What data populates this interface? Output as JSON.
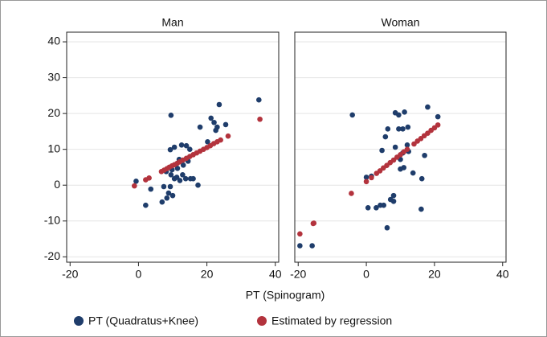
{
  "chart_data": {
    "type": "scatter",
    "x_label": "PT (Spinogram)",
    "xlim": [
      -21,
      41
    ],
    "ylim": [
      -21.5,
      42.7
    ],
    "xticks": [
      -20,
      0,
      20,
      40
    ],
    "yticks": [
      -20,
      -10,
      0,
      10,
      20,
      30,
      40
    ],
    "grid": true,
    "series": [
      {
        "name": "PT (Quadratus+Knee)",
        "color": "#1f3d6b"
      },
      {
        "name": "Estimated by regression",
        "color": "#b3333d"
      }
    ],
    "panels": [
      {
        "title": "Man",
        "series": [
          {
            "x": [
              -0.7,
              2.1,
              3.6,
              9.5,
              9.3,
              10.5,
              12.6,
              14,
              15,
              18,
              21.2,
              22.1,
              22.6,
              23.6,
              25.5,
              23,
              35.2,
              20.2,
              6.9,
              8.3,
              8.8,
              9.3,
              10,
              10.5,
              11.2,
              12.1,
              12.9,
              13.8,
              15.2,
              16,
              17.4,
              14.5,
              13.1,
              11.4,
              9.8,
              8.1,
              11.9,
              7.4,
              9.5
            ],
            "values": [
              1.1,
              -5.6,
              -1.1,
              19.5,
              9.9,
              10.6,
              11.2,
              11,
              10,
              16.2,
              18.7,
              17.5,
              15.3,
              22.5,
              16.9,
              16.2,
              23.8,
              12.1,
              -4.7,
              -3.6,
              -2.2,
              -0.4,
              -2.9,
              1.8,
              2.2,
              1.3,
              2.9,
              1.8,
              1.8,
              1.8,
              0,
              6.7,
              5.6,
              4.7,
              4.3,
              3.8,
              7.2,
              -0.4,
              2.9
            ]
          },
          {
            "x": [
              -1.2,
              2.1,
              3.1,
              6.7,
              7.5,
              8.3,
              9,
              9.8,
              10.5,
              11.3,
              12,
              13,
              14,
              15,
              16,
              17,
              18,
              19,
              20,
              21,
              22,
              23,
              24,
              26.2,
              35.5
            ],
            "values": [
              -0.2,
              1.5,
              2.0,
              3.8,
              4.2,
              4.6,
              5.0,
              5.4,
              5.7,
              6.1,
              6.5,
              7.0,
              7.5,
              8.0,
              8.5,
              9.0,
              9.5,
              10.0,
              10.5,
              11.0,
              11.6,
              12.1,
              12.6,
              13.7,
              18.4
            ]
          }
        ]
      },
      {
        "title": "Woman",
        "series": [
          {
            "x": [
              -19.5,
              -15.9,
              -4.1,
              0,
              1.5,
              0.5,
              2.9,
              4.1,
              5.1,
              6.1,
              7.1,
              8,
              8,
              5.6,
              8.5,
              9.5,
              11.2,
              9.5,
              10.7,
              12.2,
              8.5,
              10.7,
              12,
              12.4,
              10,
              11,
              13.7,
              16.1,
              16.3,
              17.1,
              18,
              21,
              6.3,
              4.6,
              10
            ],
            "values": [
              -16.9,
              -16.9,
              19.6,
              2.2,
              2.5,
              -6.3,
              -6.3,
              -5.6,
              -5.6,
              -11.9,
              -4,
              -4.5,
              -2.9,
              13.5,
              20.2,
              19.6,
              20.4,
              15.7,
              15.7,
              16.2,
              10.6,
              9,
              11.2,
              9.4,
              7.2,
              4.9,
              3.4,
              -6.7,
              1.8,
              8.3,
              21.8,
              19.1,
              15.7,
              9.7,
              4.5
            ]
          },
          {
            "x": [
              -19.5,
              -15.6,
              -15.4,
              -4.4,
              0,
              1.5,
              3,
              4,
              5,
              6,
              7,
              8,
              9,
              10,
              11,
              12,
              14,
              15,
              16,
              17,
              18,
              19,
              20,
              21
            ],
            "values": [
              -13.6,
              -10.7,
              -10.6,
              -2.3,
              1.0,
              2.1,
              3.3,
              4.0,
              4.8,
              5.5,
              6.3,
              7.0,
              7.8,
              8.5,
              9.3,
              10.0,
              11.5,
              12.3,
              13.0,
              13.8,
              14.5,
              15.3,
              16.0,
              16.8
            ]
          }
        ]
      }
    ]
  }
}
